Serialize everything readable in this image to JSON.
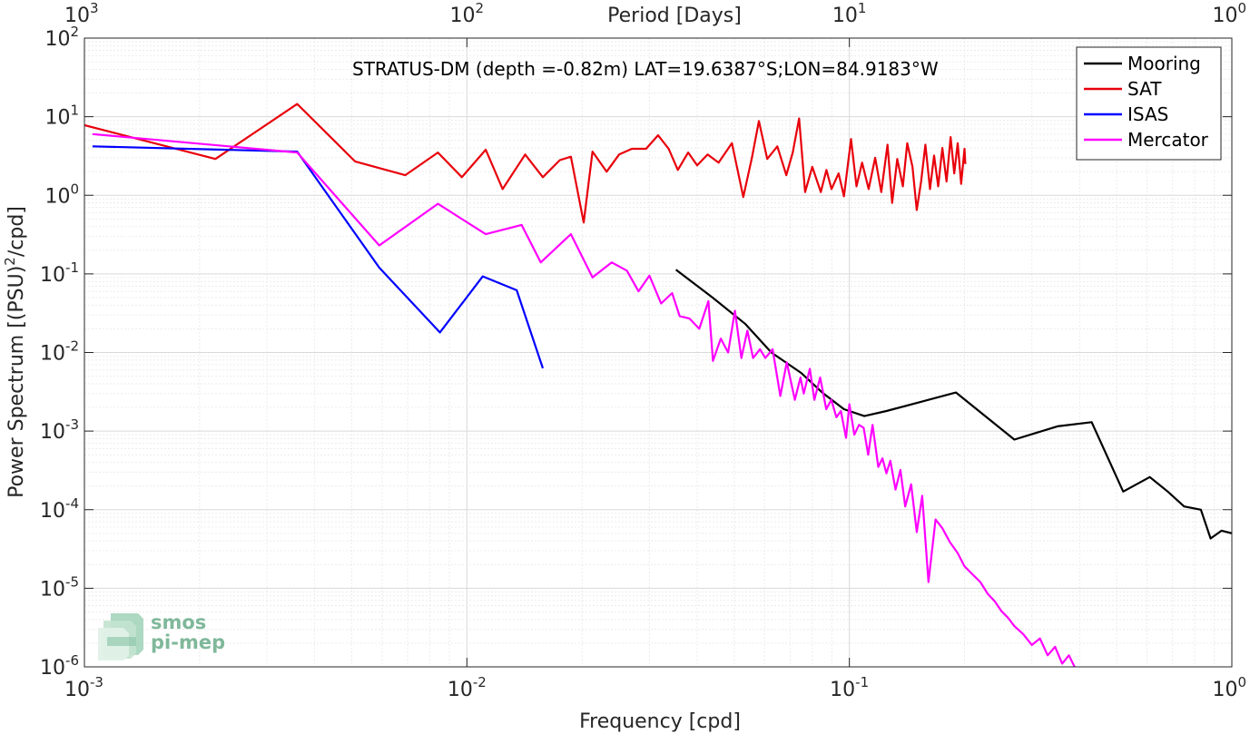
{
  "chart_data": {
    "type": "line",
    "title": "STRATUS-DM (depth =-0.82m) LAT=19.6387°S;LON=84.9183°W",
    "xlabel": "Frequency [cpd]",
    "ylabel_main": "Power Spectrum [(PSU)",
    "ylabel_sup": "2",
    "ylabel_end": "/cpd]",
    "top_xlabel": "Period [Days]",
    "x_scale": "log",
    "y_scale": "log",
    "xlim": [
      0.001,
      1
    ],
    "ylim": [
      1e-06,
      100
    ],
    "grid": true,
    "legend_position": "top-right",
    "x_ticks": [
      {
        "value": 0.001,
        "base": "10",
        "exp": "-3"
      },
      {
        "value": 0.01,
        "base": "10",
        "exp": "-2"
      },
      {
        "value": 0.1,
        "base": "10",
        "exp": "-1"
      },
      {
        "value": 1,
        "base": "10",
        "exp": "0"
      }
    ],
    "y_ticks": [
      {
        "value": 1e-06,
        "base": "10",
        "exp": "-6"
      },
      {
        "value": 1e-05,
        "base": "10",
        "exp": "-5"
      },
      {
        "value": 0.0001,
        "base": "10",
        "exp": "-4"
      },
      {
        "value": 0.001,
        "base": "10",
        "exp": "-3"
      },
      {
        "value": 0.01,
        "base": "10",
        "exp": "-2"
      },
      {
        "value": 0.1,
        "base": "10",
        "exp": "-1"
      },
      {
        "value": 1,
        "base": "10",
        "exp": "0"
      },
      {
        "value": 10,
        "base": "10",
        "exp": "1"
      },
      {
        "value": 100,
        "base": "10",
        "exp": "2"
      }
    ],
    "top_ticks": [
      {
        "value": 0.001,
        "base": "10",
        "exp": "3"
      },
      {
        "value": 0.01,
        "base": "10",
        "exp": "2"
      },
      {
        "value": 0.1,
        "base": "10",
        "exp": "1"
      },
      {
        "value": 1,
        "base": "10",
        "exp": "0"
      }
    ],
    "series": [
      {
        "name": "Mooring",
        "color": "#000000",
        "x": [
          0.0352,
          0.0439,
          0.0535,
          0.0625,
          0.0748,
          0.0849,
          0.0968,
          0.1094,
          0.125,
          0.19,
          0.27,
          0.35,
          0.43,
          0.52,
          0.61,
          0.68,
          0.75,
          0.83,
          0.88,
          0.94,
          1.0
        ],
        "y": [
          0.113,
          0.05,
          0.023,
          0.01,
          0.0055,
          0.0031,
          0.0019,
          0.00155,
          0.0018,
          0.0031,
          0.00078,
          0.00115,
          0.0013,
          0.00017,
          0.00026,
          0.00017,
          0.00011,
          0.0001,
          4.3e-05,
          5.4e-05,
          5e-05
        ]
      },
      {
        "name": "SAT",
        "color": "#e8000b",
        "x": [
          0.001,
          0.0022,
          0.0036,
          0.0051,
          0.0069,
          0.0084,
          0.0097,
          0.0112,
          0.0124,
          0.0142,
          0.0158,
          0.0175,
          0.0187,
          0.0202,
          0.0213,
          0.0232,
          0.025,
          0.027,
          0.0294,
          0.0316,
          0.0337,
          0.0356,
          0.0379,
          0.04,
          0.0426,
          0.0455,
          0.0493,
          0.0528,
          0.0556,
          0.058,
          0.061,
          0.0648,
          0.0684,
          0.0711,
          0.0739,
          0.0766,
          0.08,
          0.0842,
          0.0871,
          0.0898,
          0.0937,
          0.0968,
          0.101,
          0.1044,
          0.108,
          0.1123,
          0.1168,
          0.1212,
          0.1258,
          0.1294,
          0.1334,
          0.138,
          0.1417,
          0.1462,
          0.15,
          0.154,
          0.158,
          0.1625,
          0.1665,
          0.1707,
          0.175,
          0.1795,
          0.184,
          0.188,
          0.192,
          0.196,
          0.2,
          0.201
        ],
        "y": [
          7.8,
          2.9,
          14.5,
          2.7,
          1.8,
          3.5,
          1.7,
          3.8,
          1.2,
          3.3,
          1.7,
          2.8,
          3.1,
          0.45,
          3.6,
          2.0,
          3.3,
          3.9,
          3.9,
          5.8,
          3.9,
          2.1,
          3.5,
          2.4,
          3.3,
          2.6,
          4.6,
          0.95,
          3.0,
          8.8,
          2.9,
          4.2,
          1.8,
          3.5,
          9.5,
          1.1,
          2.3,
          1.1,
          2.1,
          1.2,
          1.9,
          0.97,
          5.2,
          1.3,
          2.6,
          1.2,
          3.0,
          1.1,
          4.4,
          0.8,
          2.9,
          1.3,
          4.6,
          2.3,
          0.65,
          1.5,
          4.4,
          1.2,
          3.2,
          1.3,
          4.0,
          1.5,
          5.5,
          1.9,
          4.6,
          1.4,
          3.9,
          2.5
        ]
      },
      {
        "name": "ISAS",
        "color": "#0000ff",
        "x": [
          0.00105,
          0.0036,
          0.0059,
          0.0085,
          0.011,
          0.0135,
          0.0158
        ],
        "y": [
          4.2,
          3.6,
          0.12,
          0.018,
          0.093,
          0.062,
          0.0063
        ]
      },
      {
        "name": "Mercator",
        "color": "#ff00ff",
        "x": [
          0.00105,
          0.0036,
          0.0059,
          0.0084,
          0.0112,
          0.0139,
          0.0156,
          0.0187,
          0.0213,
          0.0239,
          0.0262,
          0.0281,
          0.03,
          0.0322,
          0.0344,
          0.036,
          0.0382,
          0.0405,
          0.0428,
          0.044,
          0.0461,
          0.0482,
          0.0502,
          0.0522,
          0.0541,
          0.056,
          0.0584,
          0.0603,
          0.063,
          0.066,
          0.0686,
          0.072,
          0.0745,
          0.076,
          0.0788,
          0.081,
          0.0839,
          0.087,
          0.0897,
          0.0925,
          0.095,
          0.098,
          0.1,
          0.103,
          0.106,
          0.109,
          0.112,
          0.115,
          0.119,
          0.122,
          0.125,
          0.128,
          0.132,
          0.136,
          0.14,
          0.145,
          0.15,
          0.155,
          0.161,
          0.168,
          0.175,
          0.183,
          0.192,
          0.2,
          0.21,
          0.22,
          0.23,
          0.24,
          0.25,
          0.26,
          0.27,
          0.285,
          0.3,
          0.315,
          0.33,
          0.345,
          0.36,
          0.375,
          0.39,
          0.4
        ],
        "y": [
          6.0,
          3.5,
          0.23,
          0.78,
          0.32,
          0.42,
          0.14,
          0.32,
          0.09,
          0.14,
          0.11,
          0.06,
          0.095,
          0.042,
          0.057,
          0.029,
          0.027,
          0.02,
          0.045,
          0.0078,
          0.015,
          0.01,
          0.034,
          0.0085,
          0.019,
          0.0085,
          0.011,
          0.0085,
          0.011,
          0.0028,
          0.0075,
          0.0025,
          0.0048,
          0.003,
          0.0062,
          0.0025,
          0.0048,
          0.0019,
          0.0025,
          0.0015,
          0.0018,
          0.00082,
          0.0022,
          0.0009,
          0.0012,
          0.0011,
          0.0005,
          0.0012,
          0.00035,
          0.00045,
          0.00029,
          0.00042,
          0.00018,
          0.00032,
          0.00011,
          0.00021,
          5.2e-05,
          0.00015,
          1.2e-05,
          7.5e-05,
          5.8e-05,
          3.9e-05,
          2.8e-05,
          1.9e-05,
          1.5e-05,
          1.2e-05,
          8.5e-06,
          6.8e-06,
          5.1e-06,
          4.2e-06,
          3.3e-06,
          2.6e-06,
          1.9e-06,
          2.3e-06,
          1.4e-06,
          1.8e-06,
          1.1e-06,
          1.4e-06,
          9.5e-07,
          9e-07
        ]
      }
    ]
  },
  "logo": {
    "line1": "smos",
    "line2": "pi-mep"
  }
}
